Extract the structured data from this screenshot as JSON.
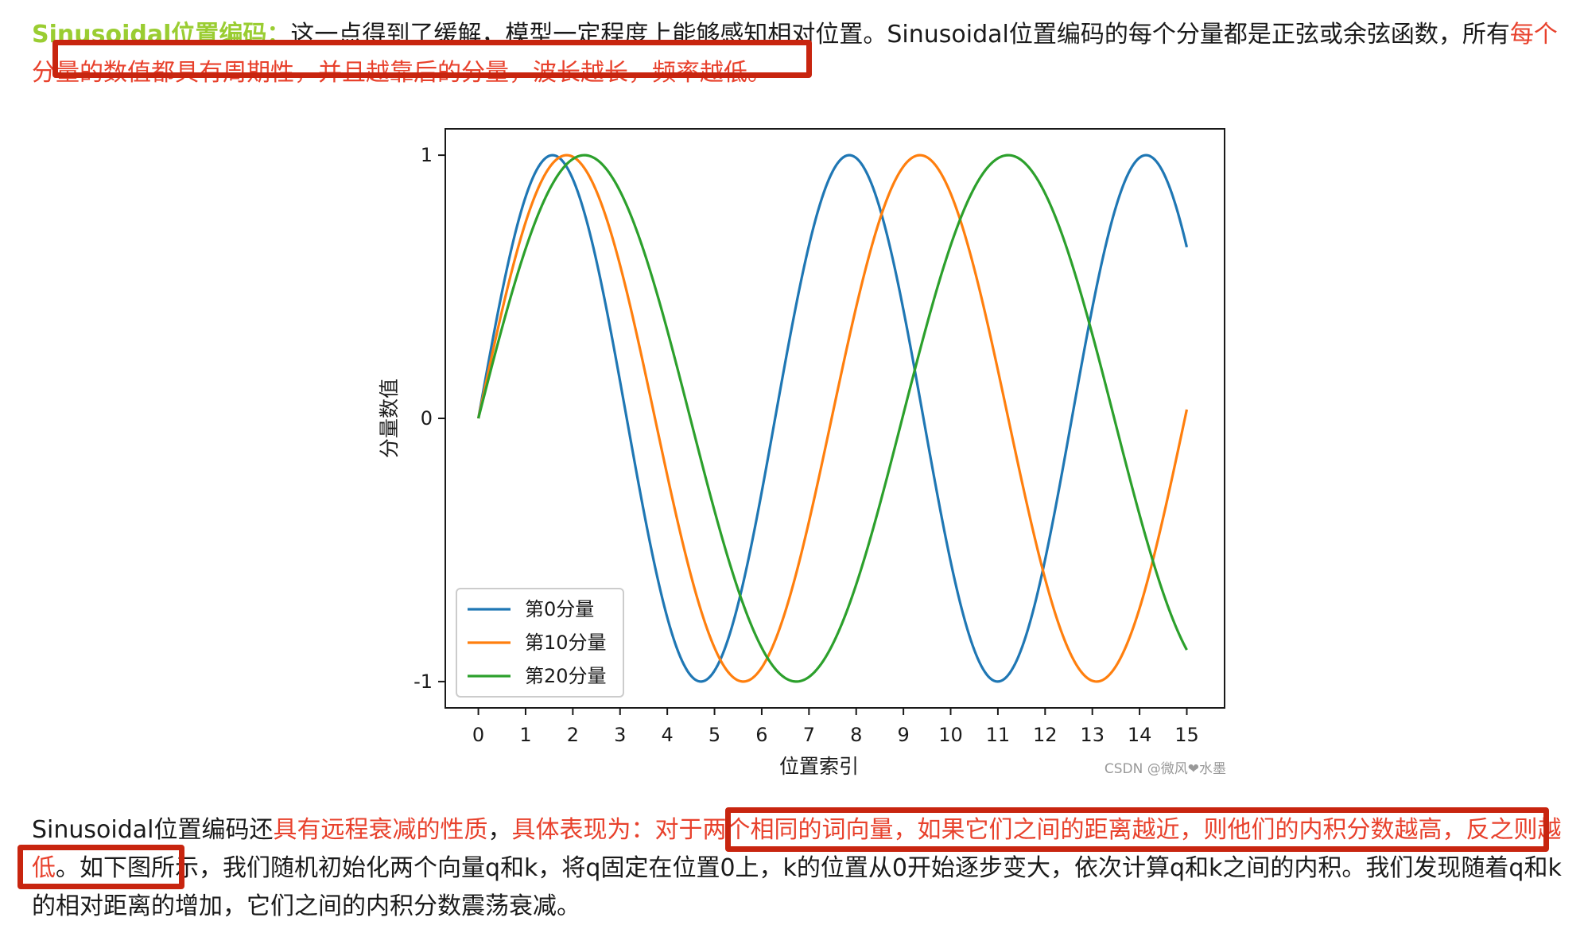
{
  "paragraph1": {
    "heading": "Sinusoidal位置编码：",
    "text_a": "这一点得到了缓解，模型一定程度上能够感知相对位置。Sinusoidal位置编码的每个分量都是正弦或余弦函数，所有",
    "highlight": "每个分量的数值都具有周期性，并且越靠后的分量，波长越长，频率越低。"
  },
  "paragraph2": {
    "text_a": "Sinusoidal位置编码还",
    "highlight_a": "具有远程衰减的性质",
    "text_b": "，",
    "highlight_b": "具体表现为：对于两个相同的词向量，如果它们之间的距离越近，则他们的内积分数越高，反之则越低",
    "text_c": "。如下图所示，我们随机初始化两个向量q和k，将q固定在位置0上，k的位置从0开始逐步变大，依次计算q和k之间的内积。我们发现随着q和k的相对距离的增加，它们之间的内积分数震荡衰减。"
  },
  "colors": {
    "highlight_text": "#e8412c",
    "highlight_box": "#c8250f",
    "heading": "#9acd32"
  },
  "chart_data": {
    "type": "line",
    "xlabel": "位置索引",
    "ylabel": "分量数值",
    "xlim": [
      -0.7,
      15.8
    ],
    "ylim": [
      -1.1,
      1.1
    ],
    "xticks": [
      "0",
      "1",
      "2",
      "3",
      "4",
      "5",
      "6",
      "7",
      "8",
      "9",
      "10",
      "11",
      "12",
      "13",
      "14",
      "15"
    ],
    "yticks": [
      {
        "value": 1,
        "label": "1"
      },
      {
        "value": 0,
        "label": "0"
      },
      {
        "value": -1,
        "label": "-1"
      }
    ],
    "legend_position": "lower-left",
    "series": [
      {
        "name": "第0分量",
        "color": "#1f77b4",
        "frequency": 1.0,
        "x_end": 15
      },
      {
        "name": "第10分量",
        "color": "#ff7f0e",
        "frequency": 0.84,
        "x_end": 15
      },
      {
        "name": "第20分量",
        "color": "#2ca02c",
        "frequency": 0.7,
        "x_end": 15
      }
    ],
    "watermark": "CSDN @微风❤水墨"
  }
}
